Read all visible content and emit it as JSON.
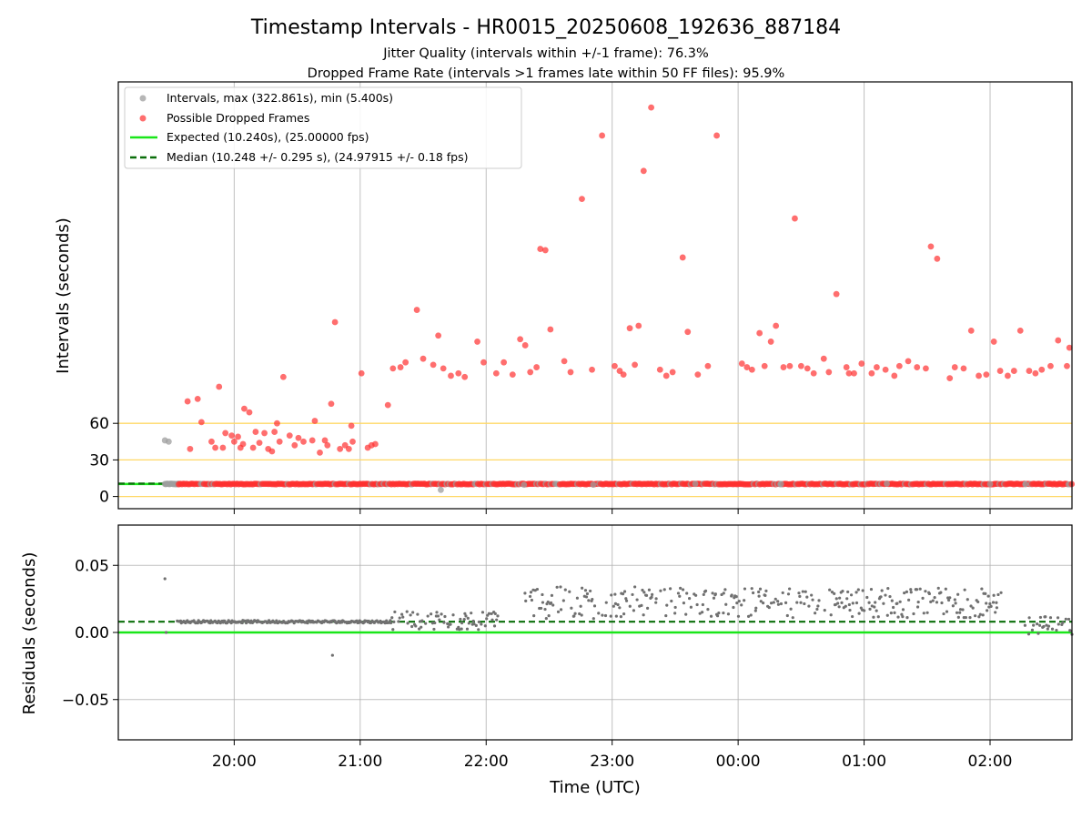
{
  "figure": {
    "title": "Timestamp Intervals - HR0015_20250608_192636_887184",
    "subtitle1": "Jitter Quality (intervals within +/-1 frame): 76.3%",
    "subtitle2": "Dropped Frame Rate (intervals >1 frames late within 50 FF files): 95.9%"
  },
  "chart_data": [
    {
      "type": "scatter",
      "ylabel": "Intervals (seconds)",
      "y_ticks": [
        0,
        30,
        60
      ],
      "y_tick_labels": [
        "0",
        "30",
        "60"
      ],
      "ylim": [
        -10,
        340
      ],
      "xlim_hours": [
        19.08,
        26.65
      ],
      "x_ticks": [
        20,
        21,
        22,
        23,
        24,
        25,
        26
      ],
      "grid": "vertical lines at x ticks",
      "reference_lines": [
        0,
        30,
        60
      ],
      "reference_color": "#ffd866",
      "legend": {
        "placement": "upper-left",
        "entries": [
          "Intervals, max (322.861s), min (5.400s)",
          "Possible Dropped Frames",
          "Expected (10.240s), (25.00000 fps)",
          "Median (10.248 +/- 0.295 s), (24.97915 +/- 0.18 fps)"
        ]
      },
      "expected_value": 10.24,
      "median_value": 10.248,
      "colors": {
        "intervals": "#9e9e9e",
        "dropped": "#ff3030",
        "expected": "#19e619",
        "median": "#0a6e0a"
      },
      "dropped_points": [
        [
          19.63,
          78
        ],
        [
          19.71,
          80
        ],
        [
          19.65,
          39
        ],
        [
          19.74,
          61
        ],
        [
          19.82,
          45
        ],
        [
          19.85,
          40
        ],
        [
          19.88,
          90
        ],
        [
          19.91,
          40
        ],
        [
          19.93,
          52
        ],
        [
          19.98,
          50
        ],
        [
          20.0,
          45
        ],
        [
          20.03,
          49
        ],
        [
          20.05,
          40
        ],
        [
          20.07,
          43
        ],
        [
          20.08,
          72
        ],
        [
          20.12,
          69
        ],
        [
          20.15,
          40
        ],
        [
          20.17,
          53
        ],
        [
          20.2,
          44
        ],
        [
          20.24,
          52
        ],
        [
          20.27,
          39
        ],
        [
          20.3,
          37
        ],
        [
          20.32,
          53
        ],
        [
          20.34,
          60
        ],
        [
          20.39,
          98
        ],
        [
          20.36,
          45
        ],
        [
          20.44,
          50
        ],
        [
          20.48,
          42
        ],
        [
          20.51,
          48
        ],
        [
          20.55,
          45
        ],
        [
          20.62,
          46
        ],
        [
          20.64,
          62
        ],
        [
          20.68,
          36
        ],
        [
          20.72,
          46
        ],
        [
          20.74,
          42
        ],
        [
          20.77,
          76
        ],
        [
          20.8,
          143
        ],
        [
          20.84,
          39
        ],
        [
          20.88,
          42
        ],
        [
          20.91,
          39
        ],
        [
          20.93,
          58
        ],
        [
          20.94,
          45
        ],
        [
          21.01,
          101
        ],
        [
          21.06,
          40
        ],
        [
          21.09,
          42
        ],
        [
          21.12,
          43
        ],
        [
          21.22,
          75
        ],
        [
          21.26,
          105
        ],
        [
          21.32,
          106
        ],
        [
          21.36,
          110
        ],
        [
          21.45,
          153
        ],
        [
          21.5,
          113
        ],
        [
          21.58,
          108
        ],
        [
          21.62,
          132
        ],
        [
          21.66,
          105
        ],
        [
          21.72,
          99
        ],
        [
          21.78,
          101
        ],
        [
          21.83,
          98
        ],
        [
          21.93,
          127
        ],
        [
          21.98,
          110
        ],
        [
          22.08,
          101
        ],
        [
          22.14,
          110
        ],
        [
          22.21,
          100
        ],
        [
          22.27,
          129
        ],
        [
          22.31,
          124
        ],
        [
          22.35,
          102
        ],
        [
          22.4,
          106
        ],
        [
          22.43,
          203
        ],
        [
          22.47,
          202
        ],
        [
          22.51,
          137
        ],
        [
          22.62,
          111
        ],
        [
          22.67,
          102
        ],
        [
          22.76,
          244
        ],
        [
          22.84,
          104
        ],
        [
          22.92,
          296
        ],
        [
          23.02,
          107
        ],
        [
          23.06,
          103
        ],
        [
          23.09,
          100
        ],
        [
          23.14,
          138
        ],
        [
          23.18,
          108
        ],
        [
          23.21,
          140
        ],
        [
          23.25,
          267
        ],
        [
          23.31,
          319
        ],
        [
          23.38,
          104
        ],
        [
          23.43,
          99
        ],
        [
          23.48,
          102
        ],
        [
          23.56,
          196
        ],
        [
          23.6,
          135
        ],
        [
          23.68,
          100
        ],
        [
          23.76,
          107
        ],
        [
          23.83,
          296
        ],
        [
          24.03,
          109
        ],
        [
          24.07,
          106
        ],
        [
          24.11,
          104
        ],
        [
          24.17,
          134
        ],
        [
          24.21,
          107
        ],
        [
          24.26,
          127
        ],
        [
          24.3,
          140
        ],
        [
          24.36,
          106
        ],
        [
          24.41,
          107
        ],
        [
          24.45,
          228
        ],
        [
          24.5,
          107
        ],
        [
          24.55,
          105
        ],
        [
          24.6,
          101
        ],
        [
          24.68,
          113
        ],
        [
          24.72,
          102
        ],
        [
          24.78,
          166
        ],
        [
          24.86,
          106
        ],
        [
          24.88,
          101
        ],
        [
          24.92,
          101
        ],
        [
          24.98,
          109
        ],
        [
          25.06,
          101
        ],
        [
          25.1,
          106
        ],
        [
          25.17,
          104
        ],
        [
          25.24,
          99
        ],
        [
          25.28,
          107
        ],
        [
          25.35,
          111
        ],
        [
          25.42,
          106
        ],
        [
          25.49,
          105
        ],
        [
          25.53,
          205
        ],
        [
          25.58,
          195
        ],
        [
          25.68,
          97
        ],
        [
          25.72,
          106
        ],
        [
          25.79,
          105
        ],
        [
          25.85,
          136
        ],
        [
          25.91,
          99
        ],
        [
          25.97,
          100
        ],
        [
          26.03,
          127
        ],
        [
          26.08,
          103
        ],
        [
          26.14,
          99
        ],
        [
          26.19,
          103
        ],
        [
          26.24,
          136
        ],
        [
          26.31,
          103
        ],
        [
          26.36,
          101
        ],
        [
          26.41,
          104
        ],
        [
          26.48,
          107
        ],
        [
          26.54,
          128
        ],
        [
          26.61,
          107
        ],
        [
          26.63,
          122
        ]
      ],
      "grey_points": [
        [
          19.45,
          46
        ],
        [
          19.48,
          45
        ],
        [
          21.64,
          5.4
        ],
        [
          22.3,
          9.6
        ],
        [
          22.85,
          9.7
        ],
        [
          23.66,
          10.4
        ],
        [
          24.34,
          10.3
        ],
        [
          25.18,
          10.5
        ],
        [
          26.0,
          10.2
        ],
        [
          26.28,
          10.1
        ]
      ],
      "dense_band": {
        "grey_from": 19.45,
        "grey_to": 19.56,
        "red_from": 19.56,
        "red_to": 26.65,
        "value": 10.24
      }
    },
    {
      "type": "scatter",
      "xlabel": "Time (UTC)",
      "ylabel": "Residuals (seconds)",
      "ylim": [
        -0.08,
        0.08
      ],
      "y_ticks": [
        -0.05,
        0.0,
        0.05
      ],
      "y_tick_labels": [
        "−0.05",
        "0.00",
        "0.05"
      ],
      "x_ticks": [
        20,
        21,
        22,
        23,
        24,
        25,
        26
      ],
      "x_tick_labels": [
        "20:00",
        "21:00",
        "22:00",
        "23:00",
        "00:00",
        "01:00",
        "02:00"
      ],
      "grid": "both",
      "expected_value": 0.0,
      "median_value": 0.008,
      "point_color": "#707070",
      "outliers": [
        [
          19.45,
          0.04
        ],
        [
          19.46,
          0.0
        ],
        [
          20.78,
          -0.017
        ]
      ],
      "segments": [
        {
          "from": 19.55,
          "to": 21.25,
          "center": 0.008,
          "spread": 0.001
        },
        {
          "from": 21.25,
          "to": 22.1,
          "center": 0.009,
          "spread": 0.007
        },
        {
          "from": 22.3,
          "to": 23.2,
          "center": 0.022,
          "spread": 0.012
        },
        {
          "from": 23.2,
          "to": 24.0,
          "center": 0.022,
          "spread": 0.011
        },
        {
          "from": 24.0,
          "to": 26.1,
          "center": 0.022,
          "spread": 0.011
        },
        {
          "from": 26.28,
          "to": 26.65,
          "center": 0.005,
          "spread": 0.007
        }
      ]
    }
  ]
}
